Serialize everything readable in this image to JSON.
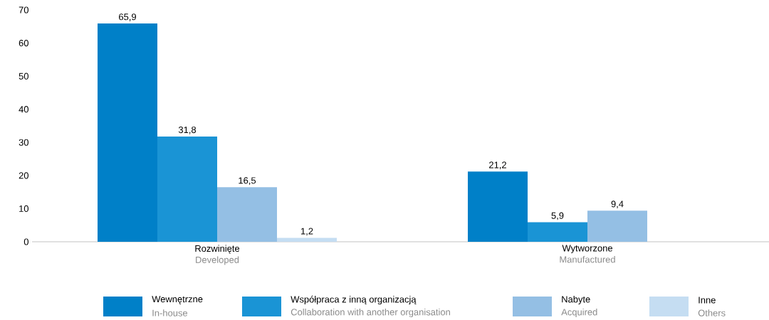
{
  "chart_data": {
    "type": "bar",
    "categories": [
      "Rozwinięte",
      "Wytworzone"
    ],
    "series": [
      {
        "name": "Wewnętrzne",
        "color": "#0080c8",
        "values": [
          65.9,
          21.2
        ],
        "value_labels": [
          "65,9",
          "21,2"
        ]
      },
      {
        "name": "Współpraca z inną organizacją",
        "color": "#1a94d5",
        "values": [
          31.8,
          5.9
        ],
        "value_labels": [
          "31,8",
          "5,9"
        ]
      },
      {
        "name": "Nabyte",
        "color": "#94bfe4",
        "values": [
          16.5,
          9.4
        ],
        "value_labels": [
          "16,5",
          "9,4"
        ]
      },
      {
        "name": "Inne",
        "color": "#c5ddf2",
        "values": [
          1.2,
          null
        ],
        "value_labels": [
          "1,2",
          null
        ]
      }
    ],
    "annotations": [
      "Developed",
      "Manufactured",
      "In-house",
      "Collaboration with another organisation",
      "Acquired",
      "Others"
    ],
    "ylim": [
      0,
      70
    ],
    "yticks": [
      0,
      10,
      20,
      30,
      40,
      50,
      60,
      70
    ],
    "grid": false,
    "legend": "bottom"
  }
}
